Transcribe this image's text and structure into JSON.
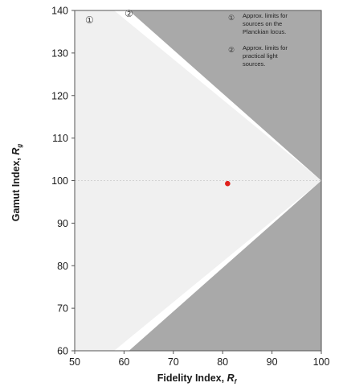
{
  "chart_data": {
    "type": "scatter",
    "xlabel_prefix": "Fidelity Index, ",
    "xlabel_symbol": "R",
    "xlabel_sub": "f",
    "ylabel_prefix": "Gamut Index, ",
    "ylabel_symbol": "R",
    "ylabel_sub": "g",
    "xlim": [
      50,
      100
    ],
    "ylim": [
      60,
      140
    ],
    "x_ticks": [
      50,
      60,
      70,
      80,
      90,
      100
    ],
    "y_ticks": [
      60,
      70,
      80,
      90,
      100,
      110,
      120,
      130,
      140
    ],
    "reference_line_y": 100,
    "regions": [
      {
        "marker": "①",
        "label": [
          "Approx. limits for",
          "sources on the",
          "Planckian locus."
        ],
        "color": "#f0f0f0",
        "polygon": [
          [
            50,
            140
          ],
          [
            58,
            140
          ],
          [
            100,
            100
          ],
          [
            58,
            60
          ],
          [
            50,
            60
          ]
        ]
      },
      {
        "marker": "②",
        "label": [
          "Approx. limits for",
          "practical light",
          "sources."
        ],
        "color": "#a9a9a9",
        "polygon": [
          [
            61,
            140
          ],
          [
            100,
            140
          ],
          [
            100,
            60
          ],
          [
            61,
            60
          ],
          [
            100,
            100
          ]
        ]
      }
    ],
    "points": [
      {
        "x": 81,
        "y": 99.3,
        "color": "#e0201b"
      }
    ],
    "grid": false
  },
  "colors": {
    "outer_region": "#a9a9a9",
    "inner_region": "#f0f0f0",
    "plot_background": "#ffffff",
    "point": "#e0201b"
  }
}
